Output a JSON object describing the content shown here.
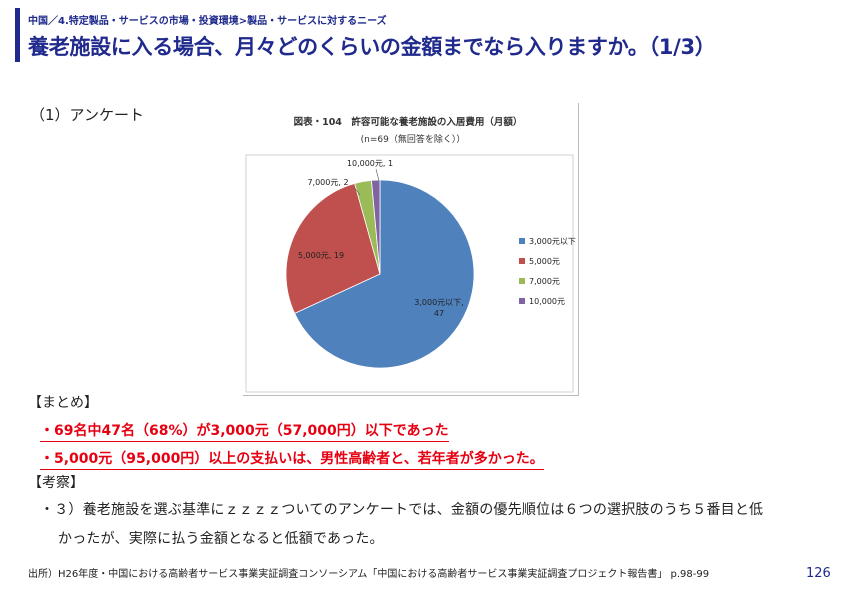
{
  "header": {
    "breadcrumb": "中国／4.特定製品・サービスの市場・投資環境>製品・サービスに対するニーズ",
    "title": "養老施設に入る場合、月々どのくらいの金額までなら入りますか。（1/3）"
  },
  "section_survey": "（1）アンケート",
  "chart_data": {
    "type": "pie",
    "title": "図表・104　許容可能な養老施設の入居費用（月額）",
    "subtitle": "(n=69（無回答を除く））",
    "categories": [
      "3,000元以下",
      "5,000元",
      "7,000元",
      "10,000元"
    ],
    "values": [
      47,
      19,
      2,
      1
    ],
    "colors": [
      "#4f81bd",
      "#c0504d",
      "#9bbb59",
      "#8064a2"
    ],
    "slice_labels": [
      "3,000元以下,\n47",
      "5,000元, 19",
      "7,000元, 2",
      "10,000元, 1"
    ],
    "legend_position": "right"
  },
  "summary": {
    "heading": "【まとめ】",
    "points": [
      "・69名中47名（68%）が3,000元（57,000円）以下であった",
      "・5,000元（95,000円）以上の支払いは、男性高齢者と、若年者が多かった。"
    ]
  },
  "consideration": {
    "heading": "【考察】",
    "lines": [
      "・３）養老施設を選ぶ基準にｚｚｚｚついてのアンケートでは、金額の優先順位は６つの選択肢のうち５番目と低",
      "かったが、実際に払う金額となると低額であった。"
    ]
  },
  "footer": {
    "source": "出所）H26年度・中国における高齢者サービス事業実証調査コンソーシアム「中国における高齢者サービス事業実証調査プロジェクト報告書」 p.98-99",
    "page_number": "126"
  }
}
